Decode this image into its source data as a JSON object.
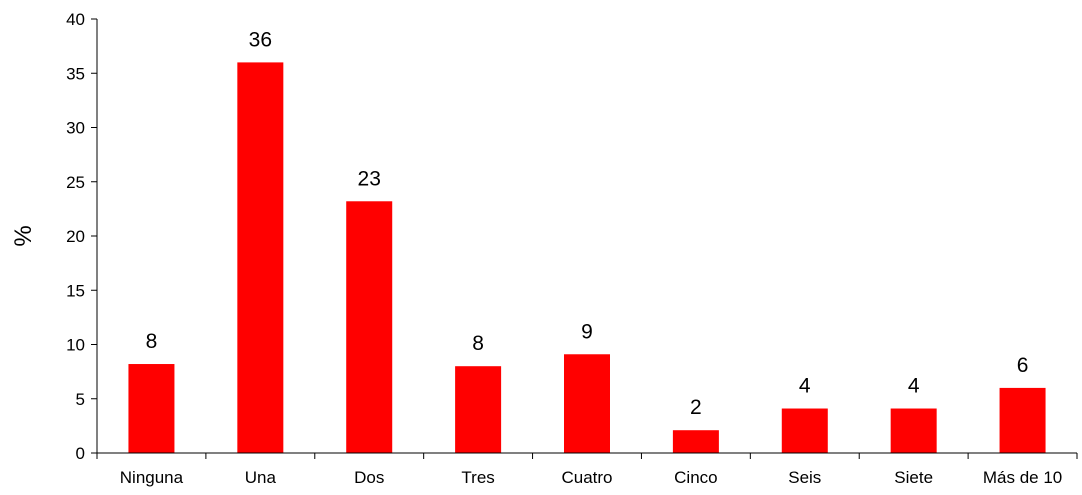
{
  "chart_data": {
    "type": "bar",
    "categories": [
      "Ninguna",
      "Una",
      "Dos",
      "Tres",
      "Cuatro",
      "Cinco",
      "Seis",
      "Siete",
      "Más de 10"
    ],
    "values": [
      8.2,
      36,
      23.2,
      8,
      9.1,
      2.1,
      4.1,
      4.1,
      6
    ],
    "data_labels": [
      "8",
      "36",
      "23",
      "8",
      "9",
      "2",
      "4",
      "4",
      "6"
    ],
    "ylabel": "%",
    "xlabel": "",
    "ylim": [
      0,
      40
    ],
    "yticks": [
      "0",
      "5",
      "10",
      "15",
      "20",
      "25",
      "30",
      "35",
      "40"
    ],
    "grid": false,
    "legend": "none",
    "bar_color": "#ff0000"
  }
}
